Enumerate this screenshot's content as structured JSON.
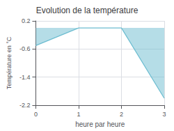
{
  "chart_data": {
    "type": "line",
    "title": "Evolution de la température",
    "xlabel": "heure par heure",
    "ylabel": "Température en °C",
    "x": [
      0,
      1,
      2,
      3
    ],
    "values": [
      -0.5,
      0.0,
      0.0,
      -2.0
    ],
    "color": "#6bbcd0",
    "xlim": [
      0,
      3
    ],
    "xticks": [
      0,
      1,
      2,
      3
    ],
    "ylim": [
      -2.2,
      0.2
    ],
    "yticks": [
      0.2,
      -0.6,
      -1.4,
      -2.2
    ],
    "grid": true
  }
}
